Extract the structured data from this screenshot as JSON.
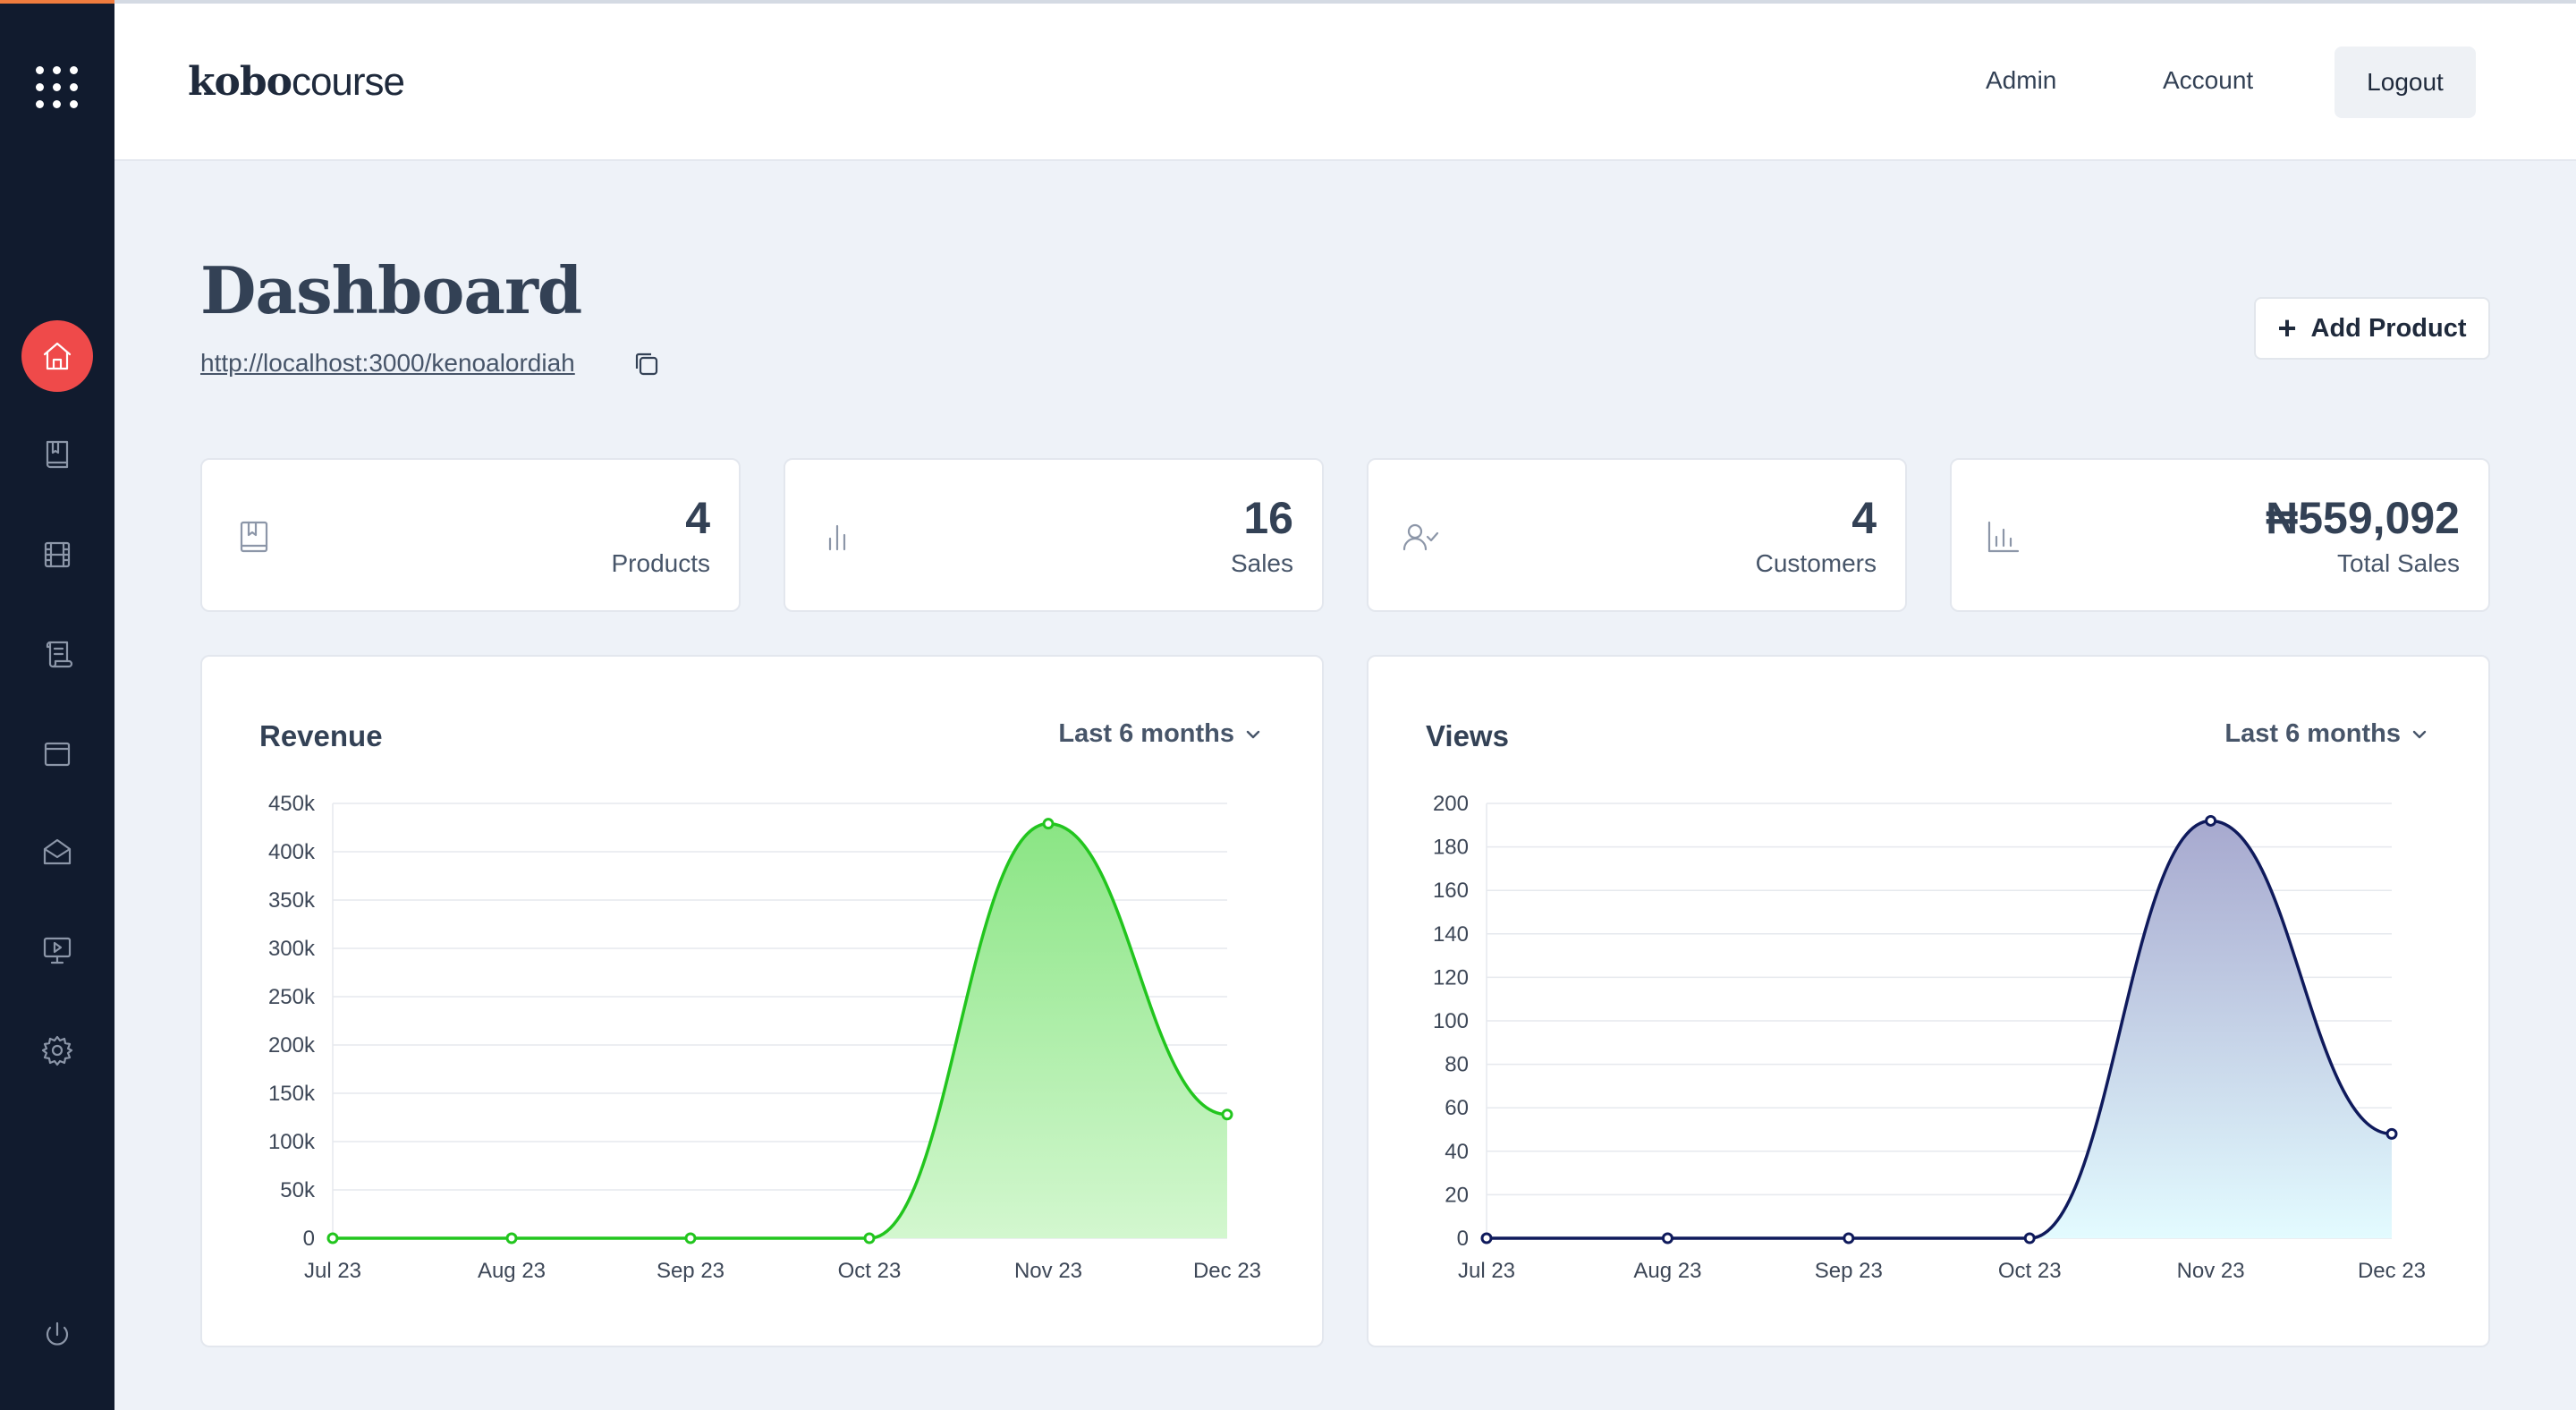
{
  "app": {
    "logo_bold": "kobo",
    "logo_light": "course"
  },
  "header": {
    "nav": {
      "admin": "Admin",
      "account": "Account",
      "logout": "Logout"
    }
  },
  "sidebar": {
    "items": [
      {
        "name": "home",
        "icon": "home-icon",
        "active": true
      },
      {
        "name": "products",
        "icon": "book-icon",
        "active": false
      },
      {
        "name": "videos",
        "icon": "film-icon",
        "active": false
      },
      {
        "name": "posts",
        "icon": "scroll-icon",
        "active": false
      },
      {
        "name": "wallet",
        "icon": "wallet-icon",
        "active": false
      },
      {
        "name": "mail",
        "icon": "mail-icon",
        "active": false
      },
      {
        "name": "presentations",
        "icon": "presentation-icon",
        "active": false
      },
      {
        "name": "settings",
        "icon": "gear-icon",
        "active": false
      }
    ],
    "power_icon": "power-icon"
  },
  "page": {
    "title": "Dashboard",
    "store_url": "http://localhost:3000/kenoalordiah",
    "add_product_label": "Add Product"
  },
  "stats": [
    {
      "value": "4",
      "label": "Products",
      "icon": "bookmark-book-icon"
    },
    {
      "value": "16",
      "label": "Sales",
      "icon": "bar-chart-icon"
    },
    {
      "value": "4",
      "label": "Customers",
      "icon": "user-check-icon"
    },
    {
      "value": "₦559,092",
      "label": "Total Sales",
      "icon": "chart-axis-icon"
    }
  ],
  "colors": {
    "accent": "#ef4a4a",
    "sidebar_bg": "#111b2e",
    "revenue_line": "#22c51e",
    "views_line": "#0f1a5c"
  },
  "chart_data": [
    {
      "type": "area",
      "title": "Revenue",
      "range_label": "Last 6 months",
      "categories": [
        "Jul 23",
        "Aug 23",
        "Sep 23",
        "Oct 23",
        "Nov 23",
        "Dec 23"
      ],
      "values": [
        0,
        0,
        0,
        0,
        429000,
        128000
      ],
      "ylim": [
        0,
        450000
      ],
      "yticks": [
        0,
        50000,
        100000,
        150000,
        200000,
        250000,
        300000,
        350000,
        400000,
        450000
      ],
      "ytick_labels": [
        "0",
        "50k",
        "100k",
        "150k",
        "200k",
        "250k",
        "300k",
        "350k",
        "400k",
        "450k"
      ],
      "grid": true
    },
    {
      "type": "area",
      "title": "Views",
      "range_label": "Last 6 months",
      "categories": [
        "Jul 23",
        "Aug 23",
        "Sep 23",
        "Oct 23",
        "Nov 23",
        "Dec 23"
      ],
      "values": [
        0,
        0,
        0,
        0,
        192,
        48
      ],
      "ylim": [
        0,
        200
      ],
      "yticks": [
        0,
        20,
        40,
        60,
        80,
        100,
        120,
        140,
        160,
        180,
        200
      ],
      "ytick_labels": [
        "0",
        "20",
        "40",
        "60",
        "80",
        "100",
        "120",
        "140",
        "160",
        "180",
        "200"
      ],
      "grid": true
    }
  ]
}
